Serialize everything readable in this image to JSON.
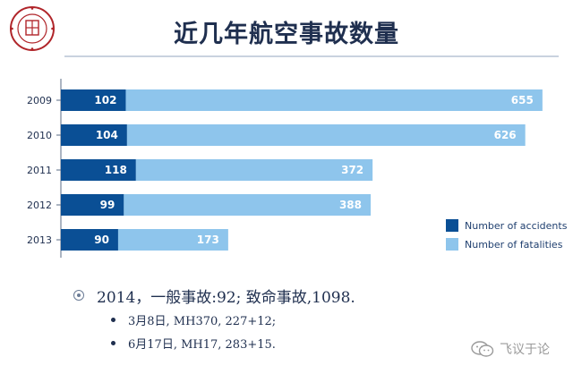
{
  "slide": {
    "title": "近几年航空事故数量"
  },
  "chart_data": {
    "type": "bar",
    "orientation": "horizontal",
    "stacked": true,
    "categories": [
      "2009",
      "2010",
      "2011",
      "2012",
      "2013"
    ],
    "series": [
      {
        "name": "Number of accidents",
        "values": [
          102,
          104,
          118,
          99,
          90
        ],
        "color": "#0a4f95"
      },
      {
        "name": "Number of fatalities",
        "values": [
          655,
          626,
          372,
          388,
          173
        ],
        "color": "#8ec5ec"
      }
    ],
    "xlim": [
      0,
      760
    ],
    "grid": false,
    "legend_position": "bottom-right"
  },
  "notes": {
    "main": "2014，一般事故:92; 致命事故,1098.",
    "items": [
      "3月8日, MH370, 227+12;",
      "6月17日, MH17, 283+15."
    ]
  },
  "watermark": "飞议于论",
  "colors": {
    "accidents": "#0a4f95",
    "fatalities": "#8ec5ec",
    "title": "#1f2f4f"
  }
}
